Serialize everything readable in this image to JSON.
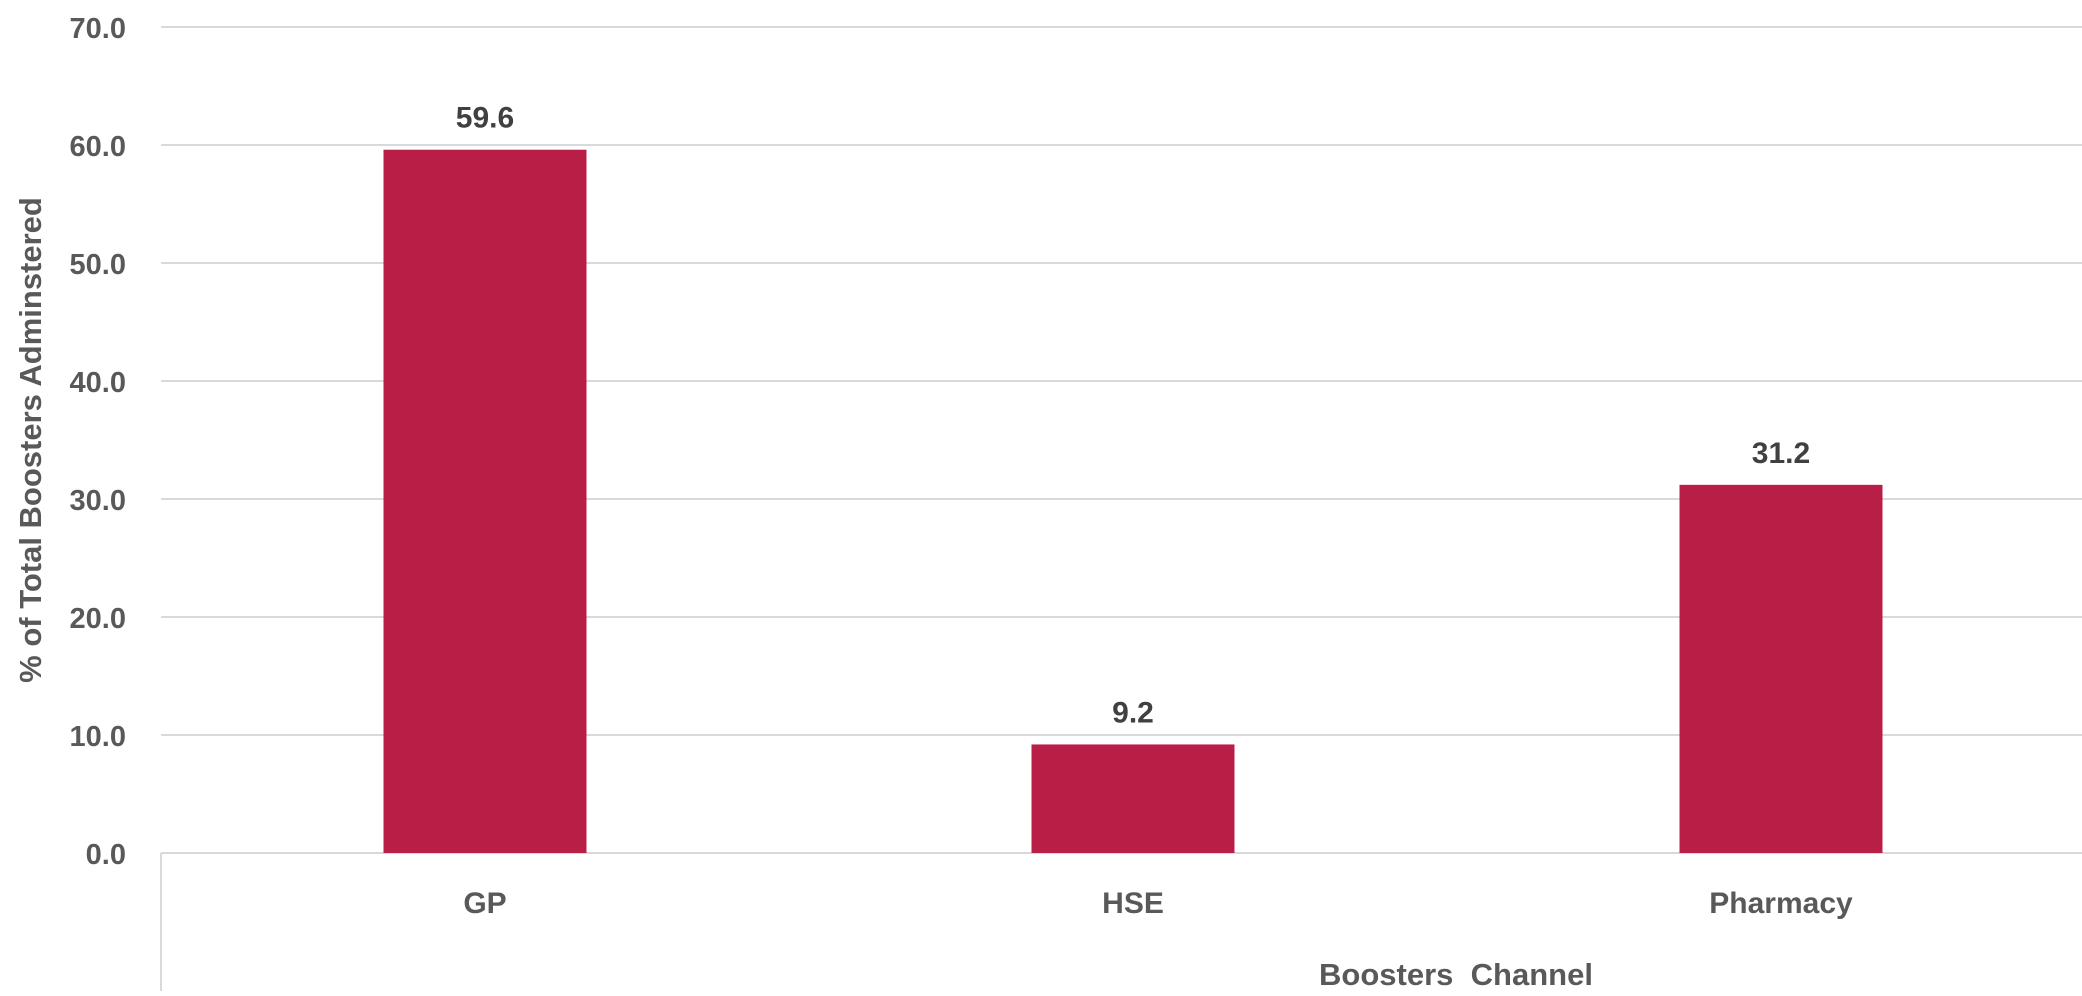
{
  "chart_data": {
    "type": "bar",
    "categories": [
      "GP",
      "HSE",
      "Pharmacy"
    ],
    "values": [
      59.6,
      9.2,
      31.2
    ],
    "data_labels": [
      "59.6",
      "9.2",
      "31.2"
    ],
    "title": "",
    "xlabel": "Boosters  Channel",
    "ylabel": "% of Total Boosters Adminstered",
    "ylim": [
      0,
      70
    ],
    "yticks": [
      0,
      10,
      20,
      30,
      40,
      50,
      60,
      70
    ],
    "ytick_labels": [
      "0.0",
      "10.0",
      "20.0",
      "30.0",
      "40.0",
      "50.0",
      "60.0",
      "70.0"
    ],
    "grid": true,
    "legend": "none",
    "colors": {
      "bar": "#b91f46",
      "text": "#595959",
      "data_label": "#404040",
      "grid": "#d9d9d9",
      "axis": "#d9d9d9"
    }
  }
}
